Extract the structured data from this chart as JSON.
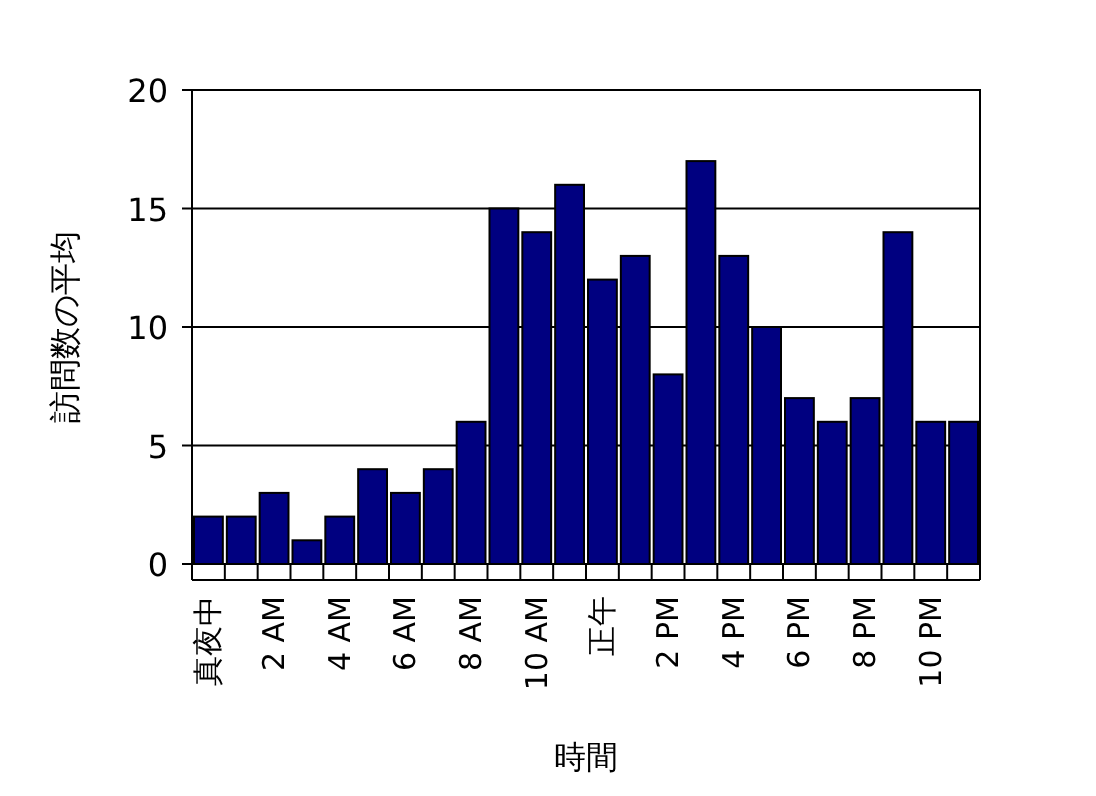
{
  "chart_data": {
    "type": "bar",
    "xlabel": "時間",
    "ylabel": "訪問数の平均",
    "categories": [
      "真夜中",
      null,
      "2 AM",
      null,
      "4 AM",
      null,
      "6 AM",
      null,
      "8 AM",
      null,
      "10 AM",
      null,
      "正午",
      null,
      "2 PM",
      null,
      "4 PM",
      null,
      "6 PM",
      null,
      "8 PM",
      null,
      "10 PM",
      null
    ],
    "values": [
      2,
      2,
      3,
      1,
      2,
      4,
      3,
      4,
      6,
      15,
      14,
      16,
      12,
      13,
      8,
      17,
      13,
      10,
      7,
      6,
      7,
      14,
      6,
      6
    ],
    "color": "#000080",
    "ylim": [
      0,
      20
    ],
    "yticks": [
      0,
      5,
      10,
      15,
      20
    ],
    "grid": "y"
  }
}
